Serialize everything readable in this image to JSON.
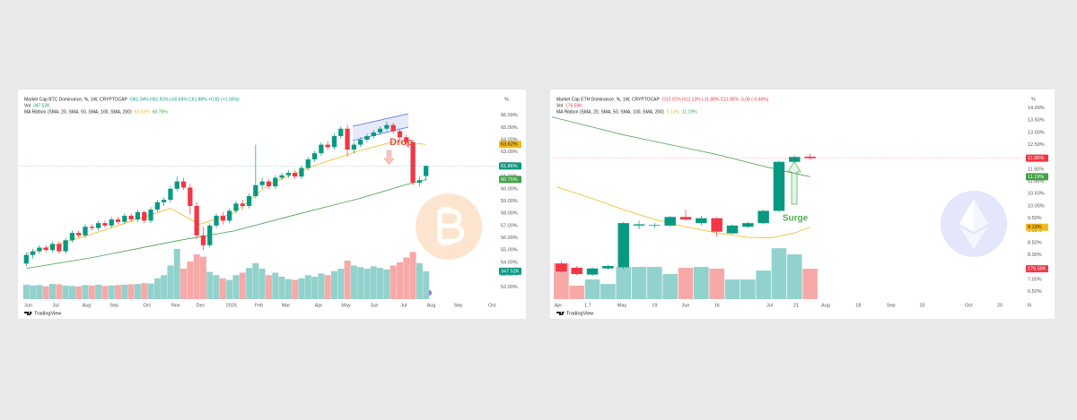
{
  "chart_data": [
    {
      "type": "candlestick",
      "title": "Market Cap BTC Dominance, %, 1W, CRYPTOCAP",
      "ohlc": "O61.04% H61.91% L60.65% C61.86% +0.82 (+1.35%)",
      "volume_name": "Vol",
      "volume_label": "347.52K",
      "ma_name": "MA Ribbon (SMA, 20, SMA, 50, SMA, 100, SMA, 200)",
      "unit": "%",
      "annotation": "Drop",
      "brand": "TradingView",
      "up_color": "#089981",
      "down_color": "#f23645",
      "volume_up_color": "#92d2cc",
      "volume_down_color": "#f7a9a7",
      "last_label": "61.86%",
      "xlim": [
        -1,
        72
      ],
      "ylim": [
        51,
        67
      ],
      "volume_lim": [
        0,
        2450
      ],
      "yticks": [
        {
          "value": 52,
          "label": "52.00%"
        },
        {
          "value": 53,
          "label": "53.00%"
        },
        {
          "value": 54,
          "label": "54.00%"
        },
        {
          "value": 55,
          "label": "55.00%"
        },
        {
          "value": 56,
          "label": "56.00%"
        },
        {
          "value": 57,
          "label": "57.00%"
        },
        {
          "value": 58,
          "label": "58.00%"
        },
        {
          "value": 59,
          "label": "59.00%"
        },
        {
          "value": 60,
          "label": "60.00%"
        },
        {
          "value": 61,
          "label": "61.00%"
        },
        {
          "value": 62,
          "label": "62.00%"
        },
        {
          "value": 63,
          "label": "63.00%"
        },
        {
          "value": 64,
          "label": "64.00%"
        },
        {
          "value": 65,
          "label": "65.00%"
        },
        {
          "value": 66,
          "label": "66.00%"
        }
      ],
      "xticks": [
        {
          "value": 0.3,
          "label": "Jun"
        },
        {
          "value": 4.5,
          "label": "Jul"
        },
        {
          "value": 9.2,
          "label": "Aug"
        },
        {
          "value": 13.4,
          "label": "Sep"
        },
        {
          "value": 18.4,
          "label": "Oct"
        },
        {
          "value": 22.8,
          "label": "Nov"
        },
        {
          "value": 26.6,
          "label": "Dec"
        },
        {
          "value": 31.3,
          "label": "2025"
        },
        {
          "value": 35.5,
          "label": "Feb"
        },
        {
          "value": 39.6,
          "label": "Mar"
        },
        {
          "value": 44.6,
          "label": "Apr"
        },
        {
          "value": 48.8,
          "label": "May"
        },
        {
          "value": 53.1,
          "label": "Jun"
        },
        {
          "value": 57.6,
          "label": "Jul"
        },
        {
          "value": 61.8,
          "label": "Aug"
        },
        {
          "value": 65.9,
          "label": "Sep"
        },
        {
          "value": 71.1,
          "label": "Oct"
        }
      ],
      "candles": [
        [
          53.9,
          54.8,
          53.7,
          54.6
        ],
        [
          54.6,
          55.1,
          54.3,
          54.9
        ],
        [
          54.9,
          55.4,
          54.7,
          55.2
        ],
        [
          55.2,
          55.4,
          54.8,
          55.0
        ],
        [
          55.0,
          55.7,
          54.8,
          55.5
        ],
        [
          55.5,
          55.7,
          54.7,
          54.9
        ],
        [
          54.9,
          56.0,
          54.7,
          55.8
        ],
        [
          55.8,
          56.6,
          55.6,
          56.4
        ],
        [
          56.4,
          56.6,
          56.0,
          56.2
        ],
        [
          56.2,
          57.1,
          56.0,
          56.9
        ],
        [
          56.9,
          57.1,
          56.6,
          56.8
        ],
        [
          56.8,
          57.4,
          56.6,
          57.2
        ],
        [
          57.2,
          57.4,
          56.8,
          57.0
        ],
        [
          57.0,
          57.7,
          56.8,
          57.5
        ],
        [
          57.5,
          57.7,
          57.1,
          57.3
        ],
        [
          57.3,
          58.0,
          57.1,
          57.8
        ],
        [
          57.8,
          58.0,
          57.3,
          57.5
        ],
        [
          57.5,
          58.3,
          57.3,
          58.1
        ],
        [
          58.1,
          58.2,
          57.2,
          57.4
        ],
        [
          57.4,
          58.5,
          57.2,
          58.3
        ],
        [
          58.3,
          59.1,
          58.1,
          58.9
        ],
        [
          58.9,
          59.3,
          58.6,
          59.1
        ],
        [
          59.1,
          60.2,
          58.9,
          60.0
        ],
        [
          60.0,
          61.0,
          59.8,
          60.6
        ],
        [
          60.6,
          60.9,
          59.9,
          60.1
        ],
        [
          60.1,
          60.4,
          57.9,
          58.6
        ],
        [
          58.6,
          58.9,
          55.9,
          56.2
        ],
        [
          56.2,
          56.9,
          55.0,
          55.4
        ],
        [
          55.4,
          57.2,
          55.2,
          57.0
        ],
        [
          57.0,
          58.0,
          56.8,
          57.8
        ],
        [
          57.8,
          58.1,
          57.1,
          57.4
        ],
        [
          57.4,
          58.4,
          57.2,
          58.2
        ],
        [
          58.2,
          59.0,
          58.0,
          58.8
        ],
        [
          58.8,
          59.1,
          58.3,
          58.6
        ],
        [
          58.6,
          59.6,
          58.4,
          59.4
        ],
        [
          59.4,
          63.6,
          59.2,
          60.3
        ],
        [
          60.3,
          60.9,
          60.0,
          60.6
        ],
        [
          60.6,
          60.8,
          60.0,
          60.2
        ],
        [
          60.2,
          61.1,
          60.0,
          60.9
        ],
        [
          60.9,
          61.3,
          60.7,
          61.1
        ],
        [
          61.1,
          61.5,
          60.9,
          61.3
        ],
        [
          61.3,
          61.5,
          60.8,
          61.0
        ],
        [
          61.0,
          61.9,
          60.8,
          61.7
        ],
        [
          61.7,
          62.6,
          61.5,
          62.4
        ],
        [
          62.4,
          63.1,
          62.2,
          62.9
        ],
        [
          62.9,
          63.8,
          62.7,
          63.6
        ],
        [
          63.6,
          63.9,
          63.2,
          63.4
        ],
        [
          63.4,
          64.5,
          63.2,
          64.3
        ],
        [
          64.3,
          65.1,
          64.1,
          64.9
        ],
        [
          64.9,
          65.2,
          62.6,
          63.2
        ],
        [
          63.2,
          63.8,
          62.9,
          63.6
        ],
        [
          63.6,
          64.2,
          63.4,
          64.0
        ],
        [
          64.0,
          64.5,
          63.8,
          64.3
        ],
        [
          64.3,
          64.8,
          64.1,
          64.6
        ],
        [
          64.6,
          65.1,
          64.4,
          64.9
        ],
        [
          64.9,
          65.5,
          64.7,
          65.2
        ],
        [
          65.2,
          65.4,
          64.5,
          64.7
        ],
        [
          64.7,
          64.9,
          64.0,
          64.2
        ],
        [
          64.2,
          64.4,
          63.5,
          63.8
        ],
        [
          63.8,
          64.0,
          60.3,
          60.5
        ],
        [
          60.5,
          61.0,
          60.2,
          60.7
        ],
        [
          61.04,
          61.91,
          60.65,
          61.86
        ]
      ],
      "volume": [
        180,
        170,
        175,
        160,
        190,
        185,
        170,
        165,
        160,
        175,
        170,
        180,
        165,
        170,
        175,
        180,
        185,
        190,
        200,
        195,
        260,
        300,
        420,
        627,
        380,
        470,
        560,
        530,
        340,
        300,
        260,
        240,
        300,
        330,
        390,
        450,
        380,
        300,
        330,
        280,
        250,
        240,
        260,
        300,
        280,
        320,
        300,
        350,
        380,
        480,
        420,
        400,
        380,
        410,
        390,
        370,
        420,
        460,
        520,
        590,
        450,
        347.52
      ],
      "ma": [
        {
          "color": "#f2b91b",
          "x": [
            0,
            9.7,
            22,
            26.4,
            31.6,
            37.1,
            44,
            50.8,
            56.3,
            61
          ],
          "values": [
            54.7,
            56.25,
            58.4,
            57.1,
            58.0,
            60.4,
            61.9,
            63.1,
            63.87,
            63.62
          ],
          "value_label": "63.62%"
        },
        {
          "color": "#43a047",
          "x": [
            0,
            9.7,
            23.4,
            31.6,
            41.2,
            50.8,
            57.7,
            61
          ],
          "values": [
            53.5,
            54.35,
            55.8,
            56.55,
            57.9,
            59.2,
            60.3,
            60.76
          ],
          "value_label": "60.76%"
        }
      ]
    },
    {
      "type": "candlestick",
      "title": "Market Cap ETH Dominance, %, 1W, CRYPTOCAP",
      "ohlc": "O12.01% H12.13% L11.88% C11.95% -0.06 (-0.46%)",
      "volume_name": "Vol",
      "volume_label": "176.59K",
      "ma_name": "MA Ribbon (SMA, 20, SMA, 50, SMA, 100, SMA, 200)",
      "unit": "%",
      "annotation": "Surge",
      "brand": "TradingView",
      "up_color": "#089981",
      "down_color": "#f23645",
      "volume_up_color": "#92d2cc",
      "volume_down_color": "#f7a9a7",
      "last_label": "11.95%",
      "xlim": [
        -0.6,
        29.7
      ],
      "ylim": [
        6.2,
        14.2
      ],
      "volume_lim": [
        0,
        1140
      ],
      "yticks": [
        {
          "value": 6.5,
          "label": "6.50%"
        },
        {
          "value": 7,
          "label": "7.00%"
        },
        {
          "value": 7.5,
          "label": "7.50%"
        },
        {
          "value": 8,
          "label": "8.00%"
        },
        {
          "value": 8.5,
          "label": "8.50%"
        },
        {
          "value": 9,
          "label": "9.00%"
        },
        {
          "value": 9.5,
          "label": "9.50%"
        },
        {
          "value": 10,
          "label": "10.00%"
        },
        {
          "value": 10.5,
          "label": "10.50%"
        },
        {
          "value": 11,
          "label": "11.00%"
        },
        {
          "value": 11.5,
          "label": "11.50%"
        },
        {
          "value": 12,
          "label": "12.00%"
        },
        {
          "value": 12.5,
          "label": "12.50%"
        },
        {
          "value": 13,
          "label": "13.00%"
        },
        {
          "value": 13.5,
          "label": "13.50%"
        },
        {
          "value": 14,
          "label": "14.00%"
        }
      ],
      "xticks": [
        {
          "value": -0.2,
          "label": "Apr"
        },
        1.7,
        {
          "value": 3.9,
          "label": "May"
        },
        {
          "value": 6,
          "label": "19"
        },
        {
          "value": 8,
          "label": "Jun"
        },
        {
          "value": 10,
          "label": "16"
        },
        {
          "value": 13.4,
          "label": "Jul"
        },
        {
          "value": 15.1,
          "label": "21"
        },
        {
          "value": 17,
          "label": "Aug"
        },
        {
          "value": 19.1,
          "label": "18"
        },
        {
          "value": 21.2,
          "label": "Sep"
        },
        {
          "value": 23.2,
          "label": "15"
        },
        {
          "value": 26.2,
          "label": "Oct"
        },
        {
          "value": 28.2,
          "label": "20"
        },
        {
          "value": 30.1,
          "label": "N"
        }
      ],
      "candles": [
        [
          7.65,
          7.75,
          7.3,
          7.33
        ],
        [
          7.48,
          7.55,
          7.18,
          7.22
        ],
        [
          7.2,
          7.5,
          7.15,
          7.45
        ],
        [
          7.45,
          7.6,
          7.4,
          7.55
        ],
        [
          7.5,
          9.35,
          7.45,
          9.3
        ],
        [
          9.2,
          9.4,
          9.05,
          9.25
        ],
        [
          9.2,
          9.3,
          9.1,
          9.22
        ],
        [
          9.2,
          9.6,
          9.15,
          9.55
        ],
        [
          9.55,
          9.85,
          9.4,
          9.45
        ],
        [
          9.3,
          9.6,
          9.2,
          9.5
        ],
        [
          9.5,
          9.55,
          8.75,
          8.95
        ],
        [
          8.88,
          9.25,
          8.85,
          9.2
        ],
        [
          9.15,
          9.35,
          9.1,
          9.3
        ],
        [
          9.3,
          9.85,
          9.25,
          9.8
        ],
        [
          9.8,
          11.85,
          9.75,
          11.8
        ],
        [
          11.8,
          12.05,
          11.75,
          12.0
        ],
        [
          12.01,
          12.13,
          11.88,
          11.95
        ]
      ],
      "volume": [
        208,
        78,
        114,
        88,
        187,
        187,
        187,
        146,
        182,
        187,
        177,
        114,
        114,
        166,
        296,
        260,
        176.59
      ],
      "ma": [
        {
          "color": "#f2b91b",
          "x": [
            -0.3,
            2,
            4,
            6,
            8,
            10,
            12,
            13.5,
            15,
            16
          ],
          "values": [
            10.78,
            10.3,
            9.85,
            9.45,
            9.15,
            8.9,
            8.72,
            8.7,
            8.9,
            9.13
          ],
          "value_label": "9.13%"
        },
        {
          "color": "#43a047",
          "x": [
            -0.6,
            4,
            10,
            13,
            16
          ],
          "values": [
            13.63,
            12.9,
            12.1,
            11.62,
            11.19
          ],
          "value_label": "11.19%"
        }
      ]
    }
  ]
}
